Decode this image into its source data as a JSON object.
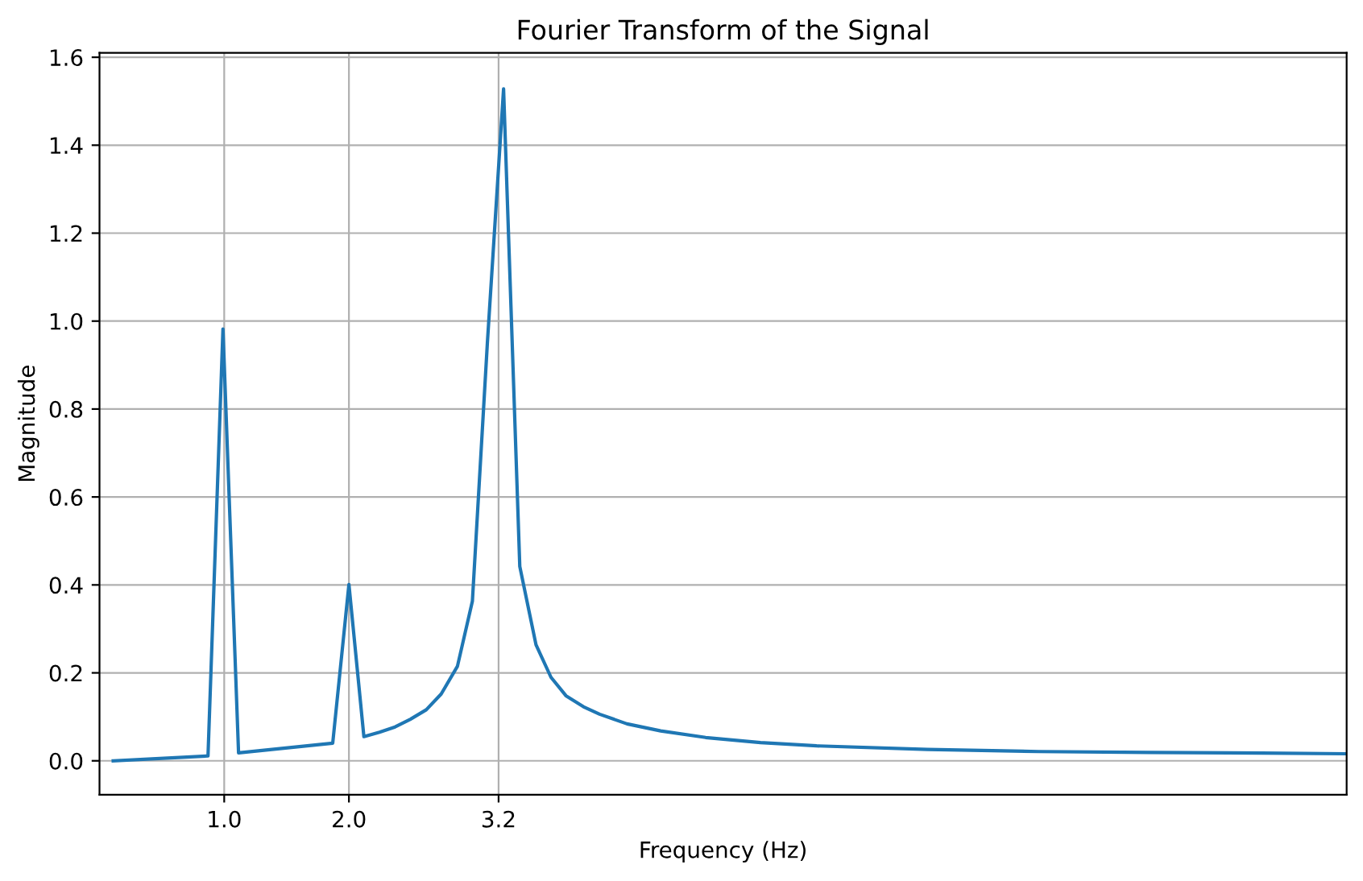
{
  "chart_data": {
    "type": "line",
    "title": "Fourier Transform of the Signal",
    "xlabel": "Frequency (Hz)",
    "ylabel": "Magnitude",
    "x": [
      0.11,
      0.87,
      0.99,
      1.115,
      1.87,
      2.0,
      2.12,
      2.245,
      2.37,
      2.49,
      2.62,
      2.74,
      2.87,
      2.99,
      3.11,
      3.24,
      3.37,
      3.5,
      3.62,
      3.74,
      3.88,
      4.01,
      4.23,
      4.5,
      4.86,
      5.3,
      5.75,
      6.64,
      7.53,
      8.42,
      9.32,
      10.0
    ],
    "series": [
      {
        "color": "#1f77b4",
        "values": [
          0.0,
          0.011,
          0.982,
          0.018,
          0.04,
          0.401,
          0.055,
          0.065,
          0.077,
          0.094,
          0.116,
          0.152,
          0.215,
          0.363,
          0.95,
          1.528,
          0.442,
          0.264,
          0.19,
          0.148,
          0.123,
          0.106,
          0.084,
          0.068,
          0.053,
          0.0415,
          0.034,
          0.026,
          0.021,
          0.019,
          0.0176,
          0.016
        ]
      }
    ],
    "xlim": [
      0,
      10
    ],
    "ylim": [
      -0.077,
      1.61
    ],
    "xticks": [
      {
        "value": 1,
        "label": "1.0"
      },
      {
        "value": 2,
        "label": "2.0"
      },
      {
        "value": 3.2,
        "label": "3.2"
      }
    ],
    "yticks": [
      {
        "value": 0,
        "label": "0.0"
      },
      {
        "value": 0.2,
        "label": "0.2"
      },
      {
        "value": 0.4,
        "label": "0.4"
      },
      {
        "value": 0.6,
        "label": "0.6"
      },
      {
        "value": 0.8,
        "label": "0.8"
      },
      {
        "value": 1.0,
        "label": "1.0"
      },
      {
        "value": 1.2,
        "label": "1.2"
      },
      {
        "value": 1.4,
        "label": "1.4"
      },
      {
        "value": 1.6,
        "label": "1.6"
      }
    ],
    "grid": true
  }
}
